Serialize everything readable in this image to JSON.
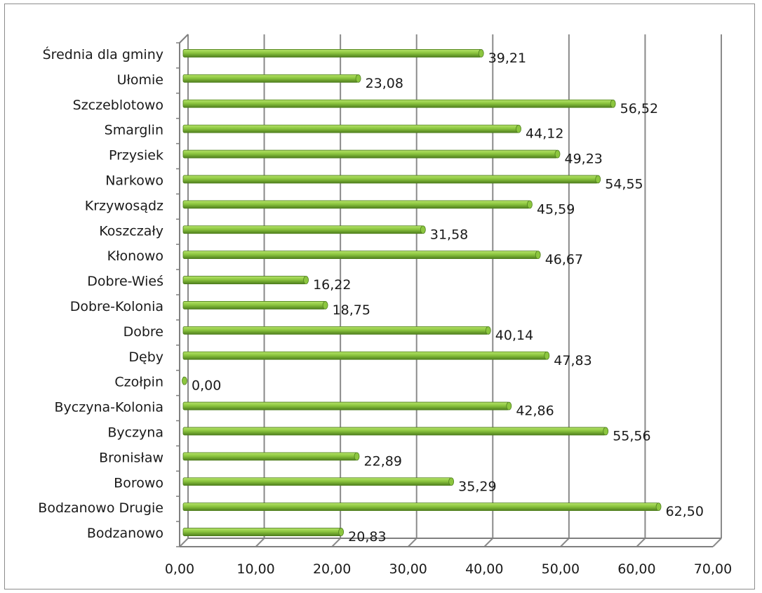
{
  "chart_data": {
    "type": "bar",
    "orientation": "horizontal",
    "categories": [
      "Bodzanowo",
      "Bodzanowo Drugie",
      "Borowo",
      "Bronisław",
      "Byczyna",
      "Byczyna-Kolonia",
      "Czołpin",
      "Dęby",
      "Dobre",
      "Dobre-Kolonia",
      "Dobre-Wieś",
      "Kłonowo",
      "Koszczały",
      "Krzywosądz",
      "Narkowo",
      "Przysiek",
      "Smarglin",
      "Szczeblotowo",
      "Ułomie",
      "Średnia dla gminy"
    ],
    "values": [
      20.83,
      62.5,
      35.29,
      22.89,
      55.56,
      42.86,
      0.0,
      47.83,
      40.14,
      18.75,
      16.22,
      46.67,
      31.58,
      45.59,
      54.55,
      49.23,
      44.12,
      56.52,
      23.08,
      39.21
    ],
    "value_labels": [
      "20,83",
      "62,50",
      "35,29",
      "22,89",
      "55,56",
      "42,86",
      "0,00",
      "47,83",
      "40,14",
      "18,75",
      "16,22",
      "46,67",
      "31,58",
      "45,59",
      "54,55",
      "49,23",
      "44,12",
      "56,52",
      "23,08",
      "39,21"
    ],
    "xlim": [
      0,
      70
    ],
    "x_ticks": [
      0,
      10,
      20,
      30,
      40,
      50,
      60,
      70
    ],
    "x_tick_labels": [
      "0,00",
      "10,00",
      "20,00",
      "30,00",
      "40,00",
      "50,00",
      "60,00",
      "70,00"
    ],
    "grid": true,
    "legend": "none",
    "colors": {
      "bar_light": "#b6e36a",
      "bar_mid": "#8cc63f",
      "bar_dark": "#4f7f1e",
      "grid": "#8a8a8a",
      "wall": "#7f7f7f"
    }
  }
}
